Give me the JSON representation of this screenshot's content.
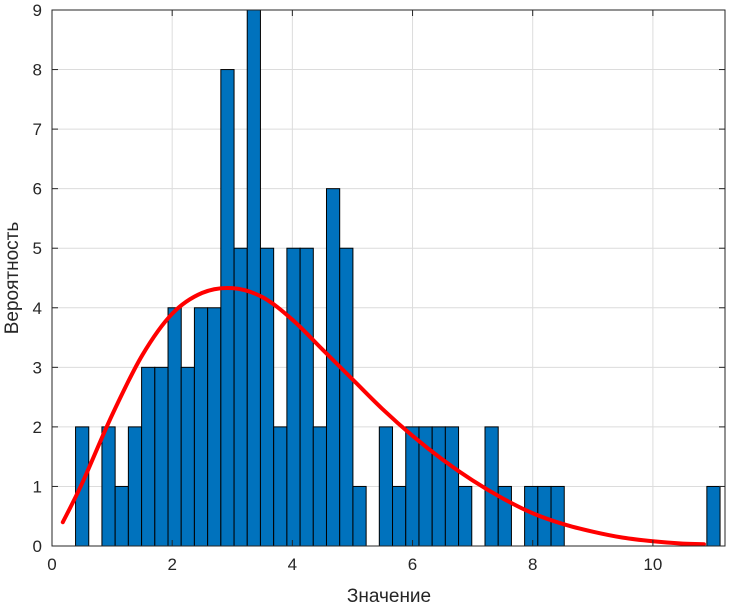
{
  "chart_data": {
    "type": "bar",
    "title": "",
    "xlabel": "Значение",
    "ylabel": "Вероятность",
    "xlim": [
      0,
      11.2
    ],
    "ylim": [
      0,
      9
    ],
    "xticks": [
      0,
      2,
      4,
      6,
      8,
      10
    ],
    "yticks": [
      0,
      1,
      2,
      3,
      4,
      5,
      6,
      7,
      8,
      9
    ],
    "grid": true,
    "bar_color": "#0072BD",
    "curve_color": "#FF0000",
    "bin_width": 0.2198,
    "bins": [
      {
        "x0": 0.392,
        "count": 2
      },
      {
        "x0": 0.612,
        "count": 0
      },
      {
        "x0": 0.831,
        "count": 2
      },
      {
        "x0": 1.051,
        "count": 1
      },
      {
        "x0": 1.271,
        "count": 2
      },
      {
        "x0": 1.491,
        "count": 3
      },
      {
        "x0": 1.711,
        "count": 3
      },
      {
        "x0": 1.931,
        "count": 4
      },
      {
        "x0": 2.15,
        "count": 3
      },
      {
        "x0": 2.37,
        "count": 4
      },
      {
        "x0": 2.59,
        "count": 4
      },
      {
        "x0": 2.81,
        "count": 8
      },
      {
        "x0": 3.03,
        "count": 5
      },
      {
        "x0": 3.249,
        "count": 9
      },
      {
        "x0": 3.469,
        "count": 5
      },
      {
        "x0": 3.689,
        "count": 2
      },
      {
        "x0": 3.909,
        "count": 5
      },
      {
        "x0": 4.129,
        "count": 5
      },
      {
        "x0": 4.348,
        "count": 2
      },
      {
        "x0": 4.568,
        "count": 6
      },
      {
        "x0": 4.788,
        "count": 5
      },
      {
        "x0": 5.008,
        "count": 1
      },
      {
        "x0": 5.228,
        "count": 0
      },
      {
        "x0": 5.447,
        "count": 2
      },
      {
        "x0": 5.667,
        "count": 1
      },
      {
        "x0": 5.887,
        "count": 2
      },
      {
        "x0": 6.107,
        "count": 2
      },
      {
        "x0": 6.327,
        "count": 2
      },
      {
        "x0": 6.546,
        "count": 2
      },
      {
        "x0": 6.766,
        "count": 1
      },
      {
        "x0": 6.986,
        "count": 0
      },
      {
        "x0": 7.206,
        "count": 2
      },
      {
        "x0": 7.426,
        "count": 1
      },
      {
        "x0": 7.645,
        "count": 0
      },
      {
        "x0": 7.865,
        "count": 1
      },
      {
        "x0": 8.085,
        "count": 1
      },
      {
        "x0": 8.305,
        "count": 1
      },
      {
        "x0": 10.898,
        "count": 1
      }
    ],
    "fit_curve": {
      "x": [
        0.18,
        0.5,
        1.0,
        1.5,
        2.0,
        2.5,
        3.0,
        3.5,
        4.0,
        4.5,
        5.0,
        5.5,
        6.0,
        6.5,
        7.0,
        7.5,
        8.0,
        8.5,
        9.0,
        9.5,
        10.0,
        10.5,
        10.85
      ],
      "y": [
        0.4,
        1.05,
        2.2,
        3.2,
        3.9,
        4.25,
        4.33,
        4.18,
        3.8,
        3.3,
        2.8,
        2.3,
        1.85,
        1.45,
        1.1,
        0.8,
        0.55,
        0.37,
        0.24,
        0.14,
        0.08,
        0.04,
        0.03
      ]
    }
  }
}
